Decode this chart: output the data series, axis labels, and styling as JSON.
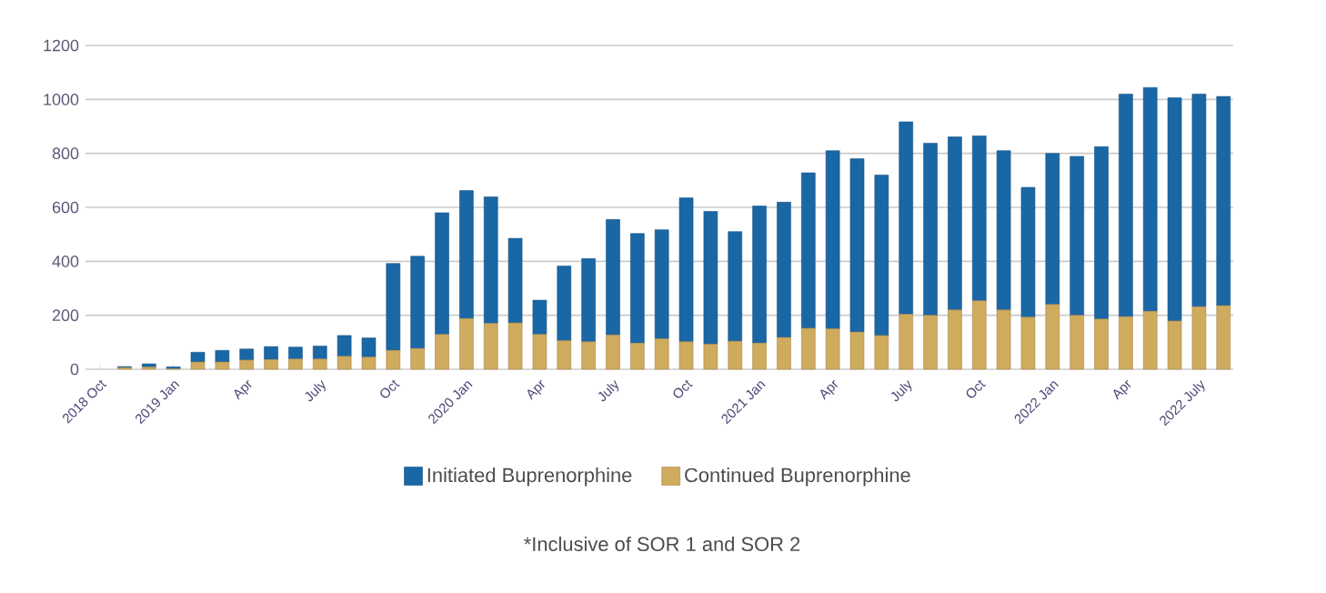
{
  "chart_data": {
    "type": "bar",
    "stacked": true,
    "categories": [
      "2018 Oct",
      null,
      null,
      "2019 Jan",
      null,
      null,
      "Apr",
      null,
      null,
      "July",
      null,
      null,
      "Oct",
      null,
      null,
      "2020 Jan",
      null,
      null,
      "Apr",
      null,
      null,
      "July",
      null,
      null,
      "Oct",
      null,
      null,
      "2021 Jan",
      null,
      null,
      "Apr",
      null,
      null,
      "July",
      null,
      null,
      "Oct",
      null,
      null,
      "2022 Jan",
      null,
      null,
      "Apr",
      null,
      null,
      "2022 July",
      null
    ],
    "series": [
      {
        "name": "Continued Buprenorphine",
        "color": "#cfab5e",
        "values": [
          0,
          6,
          8,
          2,
          27,
          27,
          34,
          36,
          38,
          38,
          48,
          45,
          70,
          77,
          129,
          188,
          170,
          172,
          129,
          106,
          102,
          127,
          97,
          113,
          102,
          93,
          104,
          97,
          118,
          152,
          150,
          138,
          125,
          204,
          200,
          220,
          254,
          220,
          193,
          240,
          200,
          186,
          195,
          215,
          179,
          232,
          236
        ]
      },
      {
        "name": "Initiated Buprenorphine",
        "color": "#1a67a6",
        "values": [
          0,
          4,
          12,
          7,
          36,
          43,
          41,
          48,
          44,
          48,
          77,
          71,
          322,
          342,
          451,
          474,
          469,
          313,
          127,
          277,
          308,
          428,
          406,
          404,
          533,
          492,
          406,
          508,
          501,
          576,
          660,
          642,
          595,
          713,
          638,
          641,
          611,
          590,
          481,
          560,
          589,
          639,
          825,
          829,
          827,
          788,
          775
        ]
      }
    ],
    "ylim": [
      0,
      1200
    ],
    "yticks": [
      0,
      200,
      400,
      600,
      800,
      1000,
      1200
    ],
    "grid": "y",
    "legend": "bottom",
    "annotations": [
      "*Inclusive of SOR 1 and SOR 2"
    ]
  }
}
